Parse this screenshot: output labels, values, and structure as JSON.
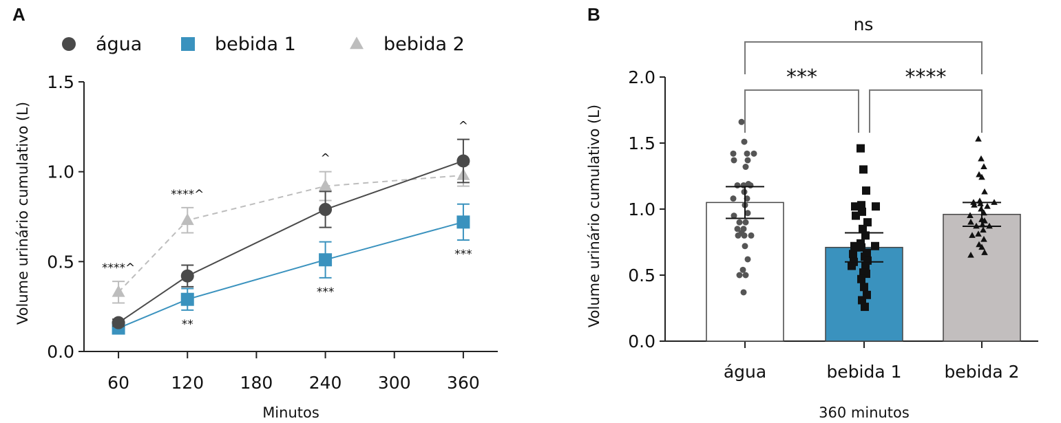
{
  "colors": {
    "agua": "#4a4a4a",
    "bebida1": "#3a92be",
    "bebida2": "#bdbdbd",
    "bar_agua_fill": "#ffffff",
    "bar_bebida1_fill": "#3a92be",
    "bar_bebida2_fill": "#c2bebe",
    "axis": "#222222",
    "bracket": "#777777"
  },
  "chart_data": [
    {
      "panel": "A",
      "type": "line",
      "xlabel": "Minutos",
      "ylabel": "Volume urinário cumulativo (L)",
      "xlim": [
        30,
        390
      ],
      "xticks": [
        60,
        120,
        180,
        240,
        300,
        360
      ],
      "ylim": [
        0,
        1.5
      ],
      "yticks": [
        0.0,
        0.5,
        1.0,
        1.5
      ],
      "ytick_labels": [
        "0.0",
        "0.5",
        "1.0",
        "1.5"
      ],
      "legend_position": "top",
      "series": [
        {
          "key": "agua",
          "name": "água",
          "marker": "circle",
          "dashed": false,
          "x": [
            60,
            120,
            240,
            360
          ],
          "y": [
            0.16,
            0.42,
            0.79,
            1.06
          ],
          "err": [
            0.02,
            0.06,
            0.1,
            0.12
          ]
        },
        {
          "key": "bebida1",
          "name": "bebida 1",
          "marker": "square",
          "dashed": false,
          "x": [
            60,
            120,
            240,
            360
          ],
          "y": [
            0.13,
            0.29,
            0.51,
            0.72
          ],
          "err": [
            0.03,
            0.06,
            0.1,
            0.1
          ]
        },
        {
          "key": "bebida2",
          "name": "bebida 2",
          "marker": "triangle",
          "dashed": true,
          "x": [
            60,
            120,
            240,
            360
          ],
          "y": [
            0.33,
            0.73,
            0.92,
            0.98
          ],
          "err": [
            0.06,
            0.07,
            0.08,
            0.06
          ]
        }
      ],
      "annotations": [
        {
          "x": 60,
          "y": 0.39,
          "pos": "above",
          "text": "****^"
        },
        {
          "x": 120,
          "y": 0.8,
          "pos": "above",
          "text": "****^"
        },
        {
          "x": 120,
          "y": 0.23,
          "pos": "below",
          "text": "**"
        },
        {
          "x": 240,
          "y": 1.0,
          "pos": "above",
          "text": "^"
        },
        {
          "x": 240,
          "y": 0.41,
          "pos": "below",
          "text": "***"
        },
        {
          "x": 360,
          "y": 1.18,
          "pos": "above",
          "text": "^"
        },
        {
          "x": 360,
          "y": 0.62,
          "pos": "below",
          "text": "***"
        }
      ]
    },
    {
      "panel": "B",
      "type": "bar",
      "xlabel": "360 minutos",
      "ylabel": "Volume urinário cumulativo (L)",
      "categories": [
        "água",
        "bebida 1",
        "bebida 2"
      ],
      "values": [
        1.05,
        0.71,
        0.96
      ],
      "errors": [
        0.12,
        0.11,
        0.09
      ],
      "ylim": [
        0,
        2.0
      ],
      "yticks": [
        0.0,
        0.5,
        1.0,
        1.5,
        2.0
      ],
      "ytick_labels": [
        "0.0",
        "0.5",
        "1.0",
        "1.5",
        "2.0"
      ],
      "points": [
        [
          1.66,
          1.51,
          1.42,
          1.42,
          1.42,
          1.37,
          1.37,
          1.32,
          1.19,
          1.18,
          1.18,
          1.18,
          1.13,
          1.08,
          1.08,
          1.03,
          0.97,
          0.95,
          0.9,
          0.9,
          0.85,
          0.85,
          0.82,
          0.8,
          0.8,
          0.8,
          0.72,
          0.62,
          0.54,
          0.5,
          0.5,
          0.37
        ],
        [
          1.46,
          1.3,
          1.14,
          1.03,
          1.02,
          1.02,
          0.98,
          0.95,
          0.9,
          0.85,
          0.8,
          0.74,
          0.72,
          0.72,
          0.71,
          0.71,
          0.67,
          0.66,
          0.64,
          0.61,
          0.6,
          0.57,
          0.57,
          0.52,
          0.51,
          0.47,
          0.41,
          0.35,
          0.31,
          0.26
        ],
        [
          1.53,
          1.38,
          1.32,
          1.26,
          1.24,
          1.13,
          1.06,
          1.05,
          1.05,
          1.04,
          1.03,
          1.02,
          1.0,
          0.97,
          0.95,
          0.92,
          0.91,
          0.9,
          0.88,
          0.87,
          0.87,
          0.84,
          0.81,
          0.8,
          0.77,
          0.73,
          0.71,
          0.67,
          0.65
        ]
      ],
      "markers": [
        "circle",
        "square",
        "triangle"
      ],
      "comparisons": [
        {
          "from": 0,
          "to": 1,
          "text": "***",
          "level": 2.0
        },
        {
          "from": 1,
          "to": 2,
          "text": "****",
          "level": 2.0
        },
        {
          "from": 0,
          "to": 2,
          "text": "ns",
          "level": 2.25
        }
      ]
    }
  ]
}
